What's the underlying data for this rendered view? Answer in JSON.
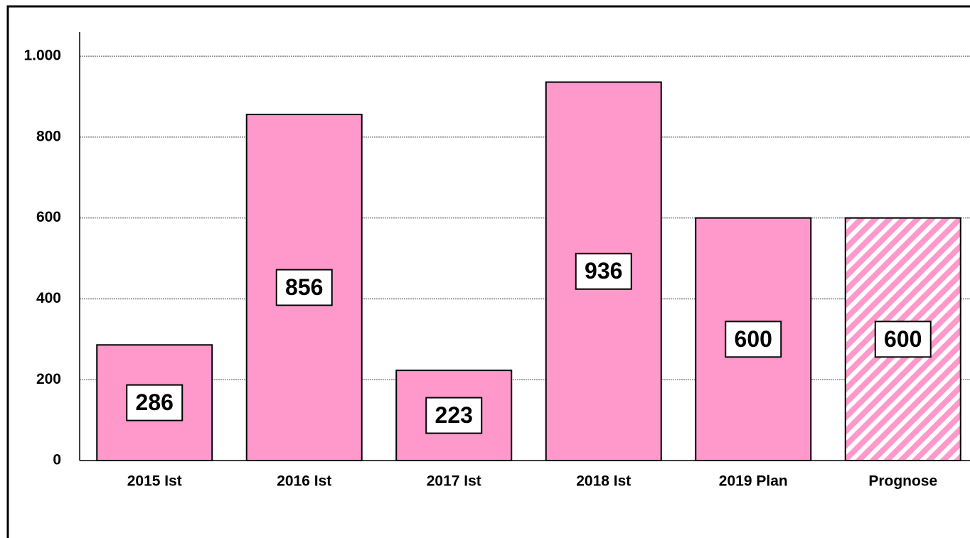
{
  "chart_data": {
    "type": "bar",
    "categories": [
      "2015 Ist",
      "2016 Ist",
      "2017 Ist",
      "2018 Ist",
      "2019 Plan",
      "Prognose"
    ],
    "values": [
      286,
      856,
      223,
      936,
      600,
      600
    ],
    "color": "#ff99cc",
    "bar_styles": [
      "solid",
      "solid",
      "solid",
      "solid",
      "solid",
      "hatched"
    ],
    "ylim": [
      0,
      1060
    ],
    "yticks": [
      0,
      200,
      400,
      600,
      800,
      {
        "value": 1000,
        "label": "1.000"
      }
    ],
    "grid": true
  }
}
